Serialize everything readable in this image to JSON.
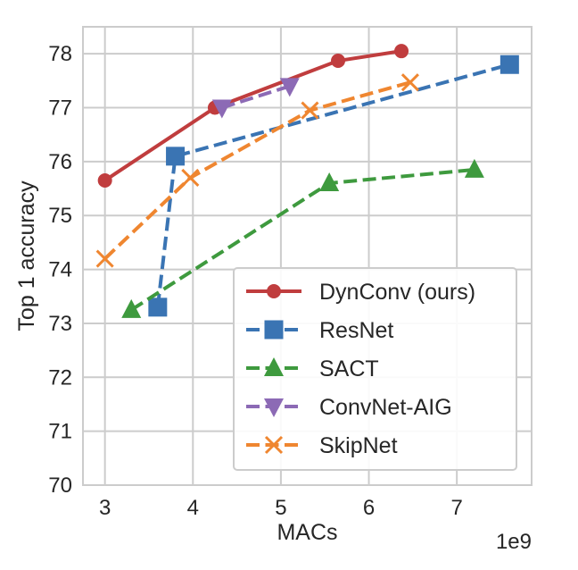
{
  "chart_data": {
    "type": "line",
    "title": "",
    "xlabel": "MACs",
    "ylabel": "Top 1 accuracy",
    "x_offset_label": "1e9",
    "x_scale": 1000000000,
    "xlim": [
      2.75,
      7.85
    ],
    "ylim": [
      70,
      78.5
    ],
    "xticks": [
      "3",
      "4",
      "5",
      "6",
      "7"
    ],
    "yticks": [
      "70",
      "71",
      "72",
      "73",
      "74",
      "75",
      "76",
      "77",
      "78"
    ],
    "grid": true,
    "legend_position": "lower-right",
    "series": [
      {
        "name": "DynConv (ours)",
        "color": "#c03d3e",
        "linestyle": "solid",
        "marker": "circle",
        "x": [
          3.0,
          4.25,
          5.65,
          6.37
        ],
        "y": [
          75.65,
          77.0,
          77.87,
          78.05
        ]
      },
      {
        "name": "ResNet",
        "color": "#3a74b3",
        "linestyle": "dashed",
        "marker": "square",
        "x": [
          3.6,
          3.8,
          7.6
        ],
        "y": [
          73.3,
          76.1,
          77.8
        ]
      },
      {
        "name": "SACT",
        "color": "#3e9a3e",
        "linestyle": "dashed",
        "marker": "triangle-up",
        "x": [
          3.3,
          5.55,
          7.2
        ],
        "y": [
          73.25,
          75.6,
          75.85
        ]
      },
      {
        "name": "ConvNet-AIG",
        "color": "#8c6ab5",
        "linestyle": "dashed",
        "marker": "triangle-down",
        "x": [
          4.33,
          5.1
        ],
        "y": [
          77.0,
          77.4
        ]
      },
      {
        "name": "SkipNet",
        "color": "#ef8630",
        "linestyle": "dashed",
        "marker": "x",
        "x": [
          3.0,
          3.97,
          5.33,
          6.47
        ],
        "y": [
          74.2,
          75.7,
          76.95,
          77.47
        ]
      }
    ]
  }
}
